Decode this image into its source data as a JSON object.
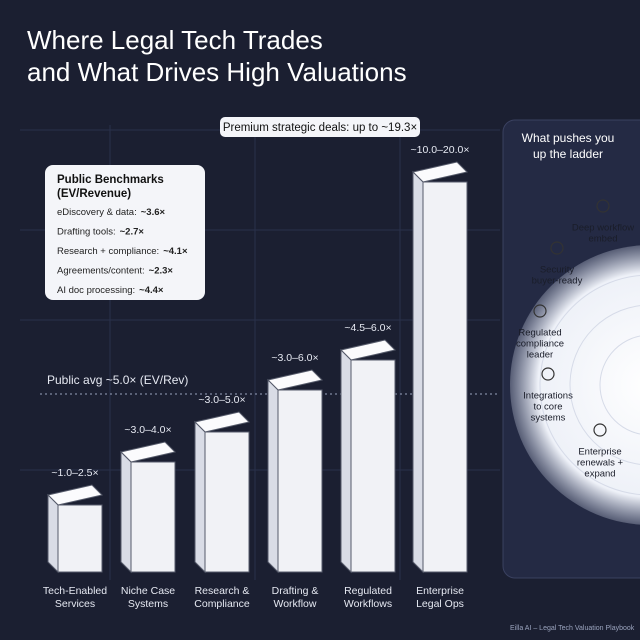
{
  "header": {
    "title_lines": [
      "Where Legal Tech Trades",
      "and What Drives High Valuations"
    ]
  },
  "premium_callout": "Premium strategic deals: up to ~19.3×",
  "public_avg": "Public avg ~5.0× (EV/Rev)",
  "benchmarks": {
    "title_lines": [
      "Public Benchmarks",
      "(EV/Revenue)"
    ],
    "items": [
      {
        "label": "eDiscovery & data:",
        "value": "~3.6×"
      },
      {
        "label": "Drafting tools:",
        "value": "~2.7×"
      },
      {
        "label": "Research + compliance:",
        "value": "~4.1×"
      },
      {
        "label": "Agreements/content:",
        "value": "~2.3×"
      },
      {
        "label": "AI doc processing:",
        "value": "~4.4×"
      }
    ]
  },
  "tiers": [
    {
      "range": "~1.0–2.5×",
      "label_lines": [
        "Tech-Enabled",
        "Services"
      ]
    },
    {
      "range": "~3.0–4.0×",
      "label_lines": [
        "Niche Case",
        "Systems"
      ]
    },
    {
      "range": "~3.0–5.0×",
      "label_lines": [
        "Research &",
        "Compliance"
      ]
    },
    {
      "range": "~3.0–6.0×",
      "label_lines": [
        "Drafting &",
        "Workflow"
      ]
    },
    {
      "range": "~4.5–6.0×",
      "label_lines": [
        "Regulated",
        "Workflows"
      ]
    },
    {
      "range": "~10.0–20.0×",
      "label_lines": [
        "Enterprise",
        "Legal Ops"
      ]
    }
  ],
  "drivers": {
    "title_lines": [
      "What pushes you",
      "up the ladder"
    ],
    "items": [
      {
        "lines": [
          "Deep workflow",
          "embed"
        ]
      },
      {
        "lines": [
          "Security",
          "buyer-ready"
        ]
      },
      {
        "lines": [
          "Regulated",
          "compliance",
          "leader"
        ]
      },
      {
        "lines": [
          "Integrations",
          "to core",
          "systems"
        ]
      },
      {
        "lines": [
          "Enterprise",
          "renewals +",
          "expand"
        ]
      }
    ]
  },
  "footer": "Eilla AI – Legal Tech Valuation Playbook"
}
